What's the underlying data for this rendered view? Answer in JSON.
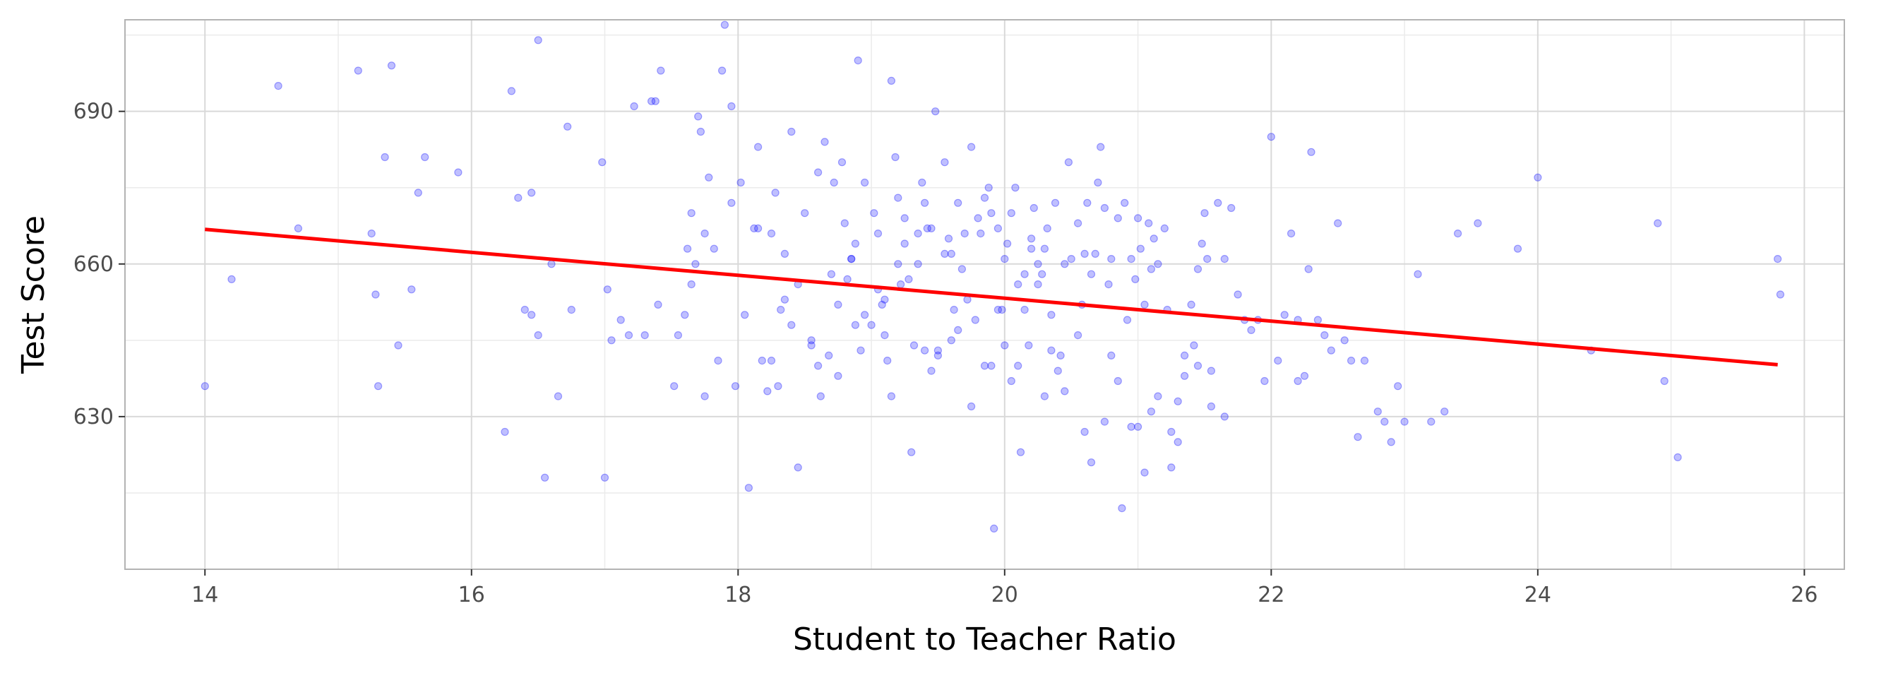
{
  "chart_data": {
    "type": "scatter",
    "title": "",
    "xlabel": "Student to Teacher Ratio",
    "ylabel": "Test Score",
    "xlim": [
      13.4,
      26.3
    ],
    "ylim": [
      600,
      708
    ],
    "x_ticks": [
      14,
      16,
      18,
      20,
      22,
      24,
      26
    ],
    "y_ticks": [
      630,
      660,
      690
    ],
    "x_tick_labels": [
      "14",
      "16",
      "18",
      "20",
      "22",
      "24",
      "26"
    ],
    "y_tick_labels": [
      "630",
      "660",
      "690"
    ],
    "grid": true,
    "legend": "none",
    "colors": {
      "points": "#0000ff",
      "fit_line": "#ff0000",
      "grid": "#d9d9d9",
      "panel_border": "#b3b3b3"
    },
    "series": [
      {
        "marker": "circle",
        "x": [
          14.0,
          14.2,
          14.55,
          14.7,
          15.15,
          15.25,
          15.28,
          15.3,
          15.35,
          15.4,
          15.45,
          15.55,
          15.6,
          15.65,
          15.9,
          16.25,
          16.3,
          16.35,
          16.4,
          16.45,
          16.5,
          16.5,
          16.55,
          16.6,
          16.65,
          16.72,
          16.75,
          16.98,
          17.0,
          17.02,
          17.05,
          17.12,
          17.18,
          17.22,
          17.3,
          17.35,
          17.38,
          17.42,
          17.52,
          17.55,
          17.6,
          17.62,
          17.65,
          17.68,
          17.7,
          17.72,
          17.75,
          17.78,
          17.82,
          17.85,
          17.88,
          17.9,
          17.95,
          17.98,
          18.02,
          18.05,
          18.08,
          18.12,
          18.15,
          18.18,
          18.22,
          18.25,
          18.28,
          18.32,
          18.35,
          18.4,
          18.45,
          18.5,
          18.55,
          18.6,
          18.62,
          18.65,
          18.68,
          18.7,
          18.72,
          18.75,
          18.78,
          18.8,
          18.82,
          18.85,
          18.88,
          18.9,
          18.92,
          18.95,
          19.0,
          19.02,
          19.05,
          19.08,
          19.1,
          19.12,
          19.15,
          19.18,
          19.2,
          19.22,
          19.25,
          19.28,
          19.3,
          19.32,
          19.35,
          19.38,
          19.4,
          19.42,
          19.45,
          19.48,
          19.5,
          19.55,
          19.58,
          19.6,
          19.62,
          19.65,
          19.68,
          19.7,
          19.72,
          19.75,
          19.78,
          19.8,
          19.82,
          19.85,
          19.88,
          19.9,
          19.92,
          19.95,
          19.98,
          20.0,
          20.02,
          20.05,
          20.08,
          20.1,
          20.12,
          20.15,
          20.18,
          20.2,
          20.22,
          20.25,
          20.28,
          20.3,
          20.32,
          20.35,
          20.38,
          20.4,
          20.42,
          20.45,
          20.48,
          20.5,
          20.55,
          20.58,
          20.6,
          20.62,
          20.65,
          20.68,
          20.7,
          20.72,
          20.75,
          20.78,
          20.8,
          20.85,
          20.88,
          20.9,
          20.92,
          20.95,
          20.98,
          21.0,
          21.02,
          21.05,
          21.08,
          21.1,
          21.12,
          21.15,
          21.2,
          21.22,
          21.25,
          21.3,
          21.35,
          21.4,
          21.42,
          21.45,
          21.48,
          21.5,
          21.52,
          21.55,
          21.6,
          21.65,
          21.7,
          21.75,
          21.8,
          21.85,
          21.9,
          21.95,
          22.0,
          22.05,
          22.1,
          22.15,
          22.2,
          22.25,
          22.28,
          22.3,
          22.35,
          22.4,
          22.45,
          22.5,
          22.55,
          22.6,
          22.65,
          22.7,
          22.8,
          22.85,
          22.9,
          22.95,
          23.0,
          23.1,
          23.2,
          23.3,
          23.4,
          23.55,
          23.85,
          24.0,
          24.4,
          24.9,
          24.95,
          25.05,
          25.8,
          25.82,
          16.45,
          17.4,
          18.4,
          18.88,
          19.2,
          19.6,
          20.1,
          20.3,
          20.95,
          21.05,
          18.35,
          19.05,
          19.45,
          19.75,
          20.05,
          20.55,
          21.15,
          21.35,
          17.75,
          18.6,
          18.95,
          19.35,
          19.95,
          20.45,
          20.75,
          21.25,
          18.25,
          19.15,
          19.55,
          20.15,
          20.85,
          21.55,
          17.95,
          18.75,
          19.25,
          19.85,
          20.25,
          20.65,
          21.45,
          18.15,
          18.55,
          19.65,
          20.35,
          21.0,
          21.65,
          18.85,
          19.4,
          19.9,
          20.6,
          21.1,
          18.45,
          19.1,
          20.0,
          20.8,
          17.65,
          18.3,
          19.5,
          20.2,
          21.3,
          22.2
        ],
        "y": [
          636,
          657,
          695,
          667,
          698,
          666,
          654,
          636,
          681,
          699,
          644,
          655,
          674,
          681,
          678,
          627,
          694,
          673,
          651,
          674,
          646,
          704,
          618,
          660,
          634,
          687,
          651,
          680,
          618,
          655,
          645,
          649,
          646,
          691,
          646,
          692,
          692,
          698,
          636,
          646,
          650,
          663,
          656,
          660,
          689,
          686,
          634,
          677,
          663,
          641,
          698,
          707,
          691,
          636,
          676,
          650,
          616,
          667,
          683,
          641,
          635,
          666,
          674,
          651,
          653,
          686,
          620,
          670,
          644,
          678,
          634,
          684,
          642,
          658,
          676,
          638,
          680,
          668,
          657,
          661,
          664,
          700,
          643,
          676,
          648,
          670,
          666,
          652,
          646,
          641,
          696,
          681,
          673,
          656,
          664,
          657,
          623,
          644,
          660,
          676,
          672,
          667,
          667,
          690,
          643,
          680,
          665,
          662,
          651,
          672,
          659,
          666,
          653,
          683,
          649,
          669,
          666,
          673,
          675,
          670,
          608,
          667,
          651,
          661,
          664,
          670,
          675,
          640,
          623,
          658,
          644,
          665,
          671,
          656,
          658,
          663,
          667,
          643,
          672,
          639,
          642,
          660,
          680,
          661,
          668,
          652,
          662,
          672,
          658,
          662,
          676,
          683,
          671,
          656,
          661,
          669,
          612,
          672,
          649,
          661,
          657,
          669,
          663,
          652,
          668,
          659,
          665,
          660,
          667,
          651,
          627,
          633,
          642,
          652,
          644,
          640,
          664,
          670,
          661,
          639,
          672,
          661,
          671,
          654,
          649,
          647,
          649,
          637,
          685,
          641,
          650,
          666,
          637,
          638,
          659,
          682,
          649,
          646,
          643,
          668,
          645,
          641,
          626,
          641,
          631,
          629,
          625,
          636,
          629,
          658,
          629,
          631,
          666,
          668,
          663,
          677,
          643,
          668,
          637,
          622,
          661,
          654,
          650,
          652,
          648,
          648,
          660,
          645,
          656,
          634,
          628,
          619,
          662,
          655,
          639,
          632,
          637,
          646,
          634,
          638,
          666,
          640,
          650,
          666,
          651,
          635,
          629,
          620,
          641,
          634,
          662,
          651,
          637,
          632,
          672,
          652,
          669,
          640,
          660,
          621,
          659,
          667,
          645,
          647,
          650,
          628,
          630,
          661,
          643,
          640,
          627,
          631,
          656,
          653,
          644,
          642,
          670,
          636,
          642,
          663,
          625,
          649
        ]
      }
    ],
    "fit_line": {
      "x": [
        14.0,
        25.8
      ],
      "y": [
        666.8,
        640.2
      ]
    }
  }
}
